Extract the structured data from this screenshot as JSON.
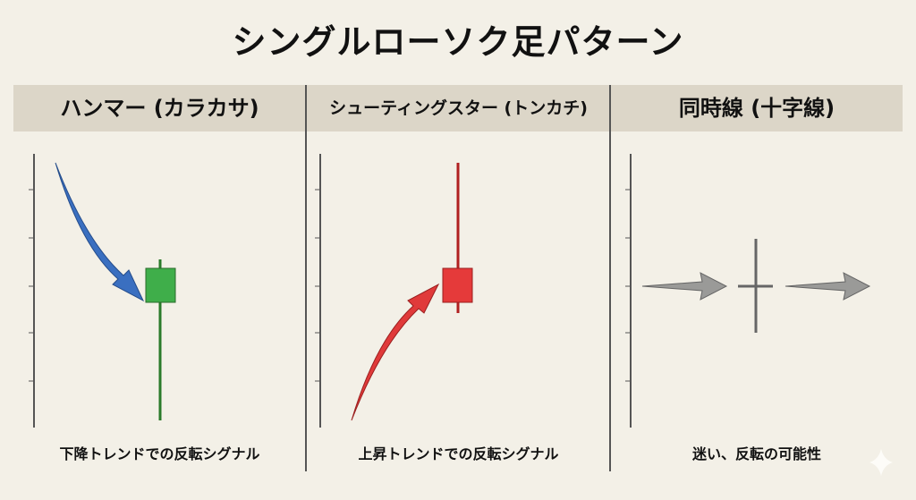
{
  "title": "シングルローソク足パターン",
  "panels": [
    {
      "header": "ハンマー (カラカサ)",
      "caption": "下降トレンドでの反転シグナル",
      "candle_color": "#3a9a3a",
      "arrow_color": "#3a6fc0"
    },
    {
      "header": "シューティングスター (トンカチ)",
      "caption": "上昇トレンドでの反転シグナル",
      "candle_color": "#e03a3a",
      "arrow_color": "#e03a3a"
    },
    {
      "header": "同時線 (十字線)",
      "caption": "迷い、反転の可能性",
      "candle_color": "#777777",
      "arrow_color": "#999999"
    }
  ]
}
